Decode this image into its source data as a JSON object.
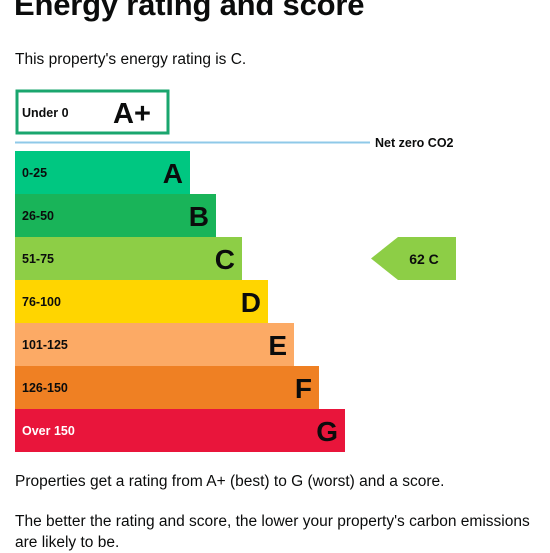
{
  "page": {
    "title": "Energy rating and score",
    "intro": "This property's energy rating is C.",
    "outro1": "Properties get a rating from A+ (best) to G (worst) and a score.",
    "outro2": "The better the rating and score, the lower your property's carbon emissions are likely to be."
  },
  "chart_data": {
    "type": "bar",
    "bands": [
      {
        "range": "Under 0",
        "letter": "A+",
        "color": "#ffffff",
        "border": "#1aa66e"
      },
      {
        "range": "0-25",
        "letter": "A",
        "color": "#00c781"
      },
      {
        "range": "26-50",
        "letter": "B",
        "color": "#19b459"
      },
      {
        "range": "51-75",
        "letter": "C",
        "color": "#8dce46"
      },
      {
        "range": "76-100",
        "letter": "D",
        "color": "#ffd500"
      },
      {
        "range": "101-125",
        "letter": "E",
        "color": "#fcaa65"
      },
      {
        "range": "126-150",
        "letter": "F",
        "color": "#ef8023"
      },
      {
        "range": "Over 150",
        "letter": "G",
        "color": "#e9153b"
      }
    ],
    "net_zero_label": "Net zero CO2",
    "net_zero_line_color": "#8fc9e8",
    "current": {
      "score": 62,
      "letter": "C",
      "label": "62 C",
      "color": "#8dce46"
    }
  }
}
